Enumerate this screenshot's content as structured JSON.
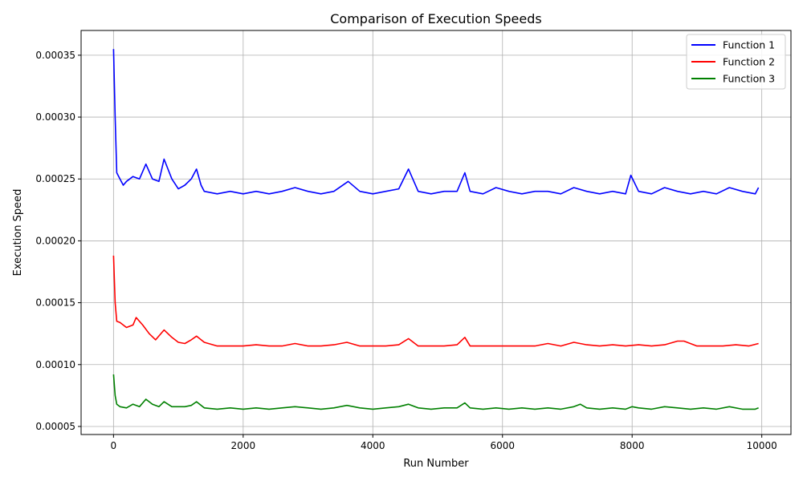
{
  "chart_data": {
    "type": "line",
    "title": "Comparison of Execution Speeds",
    "xlabel": "Run Number",
    "ylabel": "Execution Speed",
    "xlim": [
      -500,
      10450
    ],
    "ylim": [
      4.35e-05,
      0.00037
    ],
    "x_ticks": [
      0,
      2000,
      4000,
      6000,
      8000,
      10000
    ],
    "x_tick_labels": [
      "0",
      "2000",
      "4000",
      "6000",
      "8000",
      "10000"
    ],
    "y_ticks": [
      5e-05,
      0.0001,
      0.00015,
      0.0002,
      0.00025,
      0.0003,
      0.00035
    ],
    "y_tick_labels": [
      "0.00005",
      "0.00010",
      "0.00015",
      "0.00020",
      "0.00025",
      "0.00030",
      "0.00035"
    ],
    "grid": true,
    "legend_position": "top-right",
    "series": [
      {
        "name": "Function 1",
        "color": "#0000ff",
        "x": [
          0,
          25,
          50,
          100,
          150,
          200,
          300,
          400,
          500,
          600,
          700,
          780,
          900,
          1000,
          1100,
          1200,
          1280,
          1350,
          1400,
          1600,
          1800,
          2000,
          2200,
          2400,
          2600,
          2800,
          3000,
          3200,
          3400,
          3620,
          3800,
          4000,
          4200,
          4400,
          4550,
          4700,
          4900,
          5100,
          5300,
          5420,
          5500,
          5700,
          5900,
          6100,
          6300,
          6500,
          6700,
          6900,
          7100,
          7300,
          7500,
          7700,
          7900,
          7980,
          8100,
          8300,
          8500,
          8700,
          8900,
          9100,
          9300,
          9500,
          9700,
          9900,
          9950
        ],
        "y": [
          0.000355,
          0.0003,
          0.000255,
          0.00025,
          0.000245,
          0.000248,
          0.000252,
          0.00025,
          0.000262,
          0.00025,
          0.000248,
          0.000266,
          0.00025,
          0.000242,
          0.000245,
          0.00025,
          0.000258,
          0.000245,
          0.00024,
          0.000238,
          0.00024,
          0.000238,
          0.00024,
          0.000238,
          0.00024,
          0.000243,
          0.00024,
          0.000238,
          0.00024,
          0.000248,
          0.00024,
          0.000238,
          0.00024,
          0.000242,
          0.000258,
          0.00024,
          0.000238,
          0.00024,
          0.00024,
          0.000255,
          0.00024,
          0.000238,
          0.000243,
          0.00024,
          0.000238,
          0.00024,
          0.00024,
          0.000238,
          0.000243,
          0.00024,
          0.000238,
          0.00024,
          0.000238,
          0.000253,
          0.00024,
          0.000238,
          0.000243,
          0.00024,
          0.000238,
          0.00024,
          0.000238,
          0.000243,
          0.00024,
          0.000238,
          0.000243
        ]
      },
      {
        "name": "Function 2",
        "color": "#ff0000",
        "x": [
          0,
          25,
          50,
          100,
          200,
          300,
          350,
          450,
          550,
          650,
          780,
          900,
          1000,
          1100,
          1200,
          1280,
          1400,
          1600,
          1800,
          2000,
          2200,
          2400,
          2600,
          2800,
          3000,
          3200,
          3400,
          3600,
          3800,
          4000,
          4200,
          4400,
          4550,
          4700,
          4900,
          5100,
          5300,
          5420,
          5500,
          5700,
          5900,
          6100,
          6300,
          6500,
          6700,
          6900,
          7100,
          7300,
          7500,
          7700,
          7900,
          8100,
          8300,
          8500,
          8700,
          8800,
          9000,
          9200,
          9400,
          9600,
          9800,
          9950
        ],
        "y": [
          0.000188,
          0.00015,
          0.000135,
          0.000134,
          0.00013,
          0.000132,
          0.000138,
          0.000132,
          0.000125,
          0.00012,
          0.000128,
          0.000122,
          0.000118,
          0.000117,
          0.00012,
          0.000123,
          0.000118,
          0.000115,
          0.000115,
          0.000115,
          0.000116,
          0.000115,
          0.000115,
          0.000117,
          0.000115,
          0.000115,
          0.000116,
          0.000118,
          0.000115,
          0.000115,
          0.000115,
          0.000116,
          0.000121,
          0.000115,
          0.000115,
          0.000115,
          0.000116,
          0.000122,
          0.000115,
          0.000115,
          0.000115,
          0.000115,
          0.000115,
          0.000115,
          0.000117,
          0.000115,
          0.000118,
          0.000116,
          0.000115,
          0.000116,
          0.000115,
          0.000116,
          0.000115,
          0.000116,
          0.000119,
          0.000119,
          0.000115,
          0.000115,
          0.000115,
          0.000116,
          0.000115,
          0.000117
        ]
      },
      {
        "name": "Function 3",
        "color": "#008000",
        "x": [
          0,
          25,
          50,
          100,
          200,
          300,
          400,
          500,
          600,
          700,
          780,
          900,
          1000,
          1100,
          1200,
          1280,
          1400,
          1600,
          1800,
          2000,
          2200,
          2400,
          2600,
          2800,
          3000,
          3200,
          3400,
          3600,
          3800,
          4000,
          4200,
          4400,
          4550,
          4700,
          4900,
          5100,
          5300,
          5420,
          5500,
          5700,
          5900,
          6100,
          6300,
          6500,
          6700,
          6900,
          7100,
          7200,
          7300,
          7500,
          7700,
          7900,
          8000,
          8100,
          8300,
          8500,
          8700,
          8900,
          9100,
          9300,
          9500,
          9700,
          9900,
          9950
        ],
        "y": [
          9.2e-05,
          7.5e-05,
          6.8e-05,
          6.6e-05,
          6.5e-05,
          6.8e-05,
          6.6e-05,
          7.2e-05,
          6.8e-05,
          6.6e-05,
          7e-05,
          6.6e-05,
          6.6e-05,
          6.6e-05,
          6.7e-05,
          7e-05,
          6.5e-05,
          6.4e-05,
          6.5e-05,
          6.4e-05,
          6.5e-05,
          6.4e-05,
          6.5e-05,
          6.6e-05,
          6.5e-05,
          6.4e-05,
          6.5e-05,
          6.7e-05,
          6.5e-05,
          6.4e-05,
          6.5e-05,
          6.6e-05,
          6.8e-05,
          6.5e-05,
          6.4e-05,
          6.5e-05,
          6.5e-05,
          6.9e-05,
          6.5e-05,
          6.4e-05,
          6.5e-05,
          6.4e-05,
          6.5e-05,
          6.4e-05,
          6.5e-05,
          6.4e-05,
          6.6e-05,
          6.8e-05,
          6.5e-05,
          6.4e-05,
          6.5e-05,
          6.4e-05,
          6.6e-05,
          6.5e-05,
          6.4e-05,
          6.6e-05,
          6.5e-05,
          6.4e-05,
          6.5e-05,
          6.4e-05,
          6.6e-05,
          6.4e-05,
          6.4e-05,
          6.5e-05
        ]
      }
    ]
  }
}
